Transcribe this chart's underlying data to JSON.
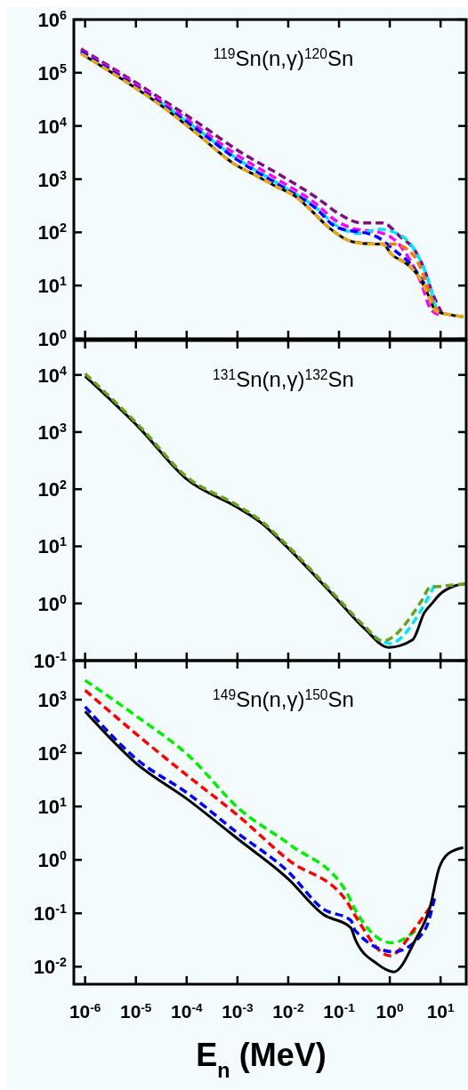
{
  "chart_data": [
    {
      "type": "line",
      "title": "$^{119}$Sn(n,γ)$^{120}$Sn",
      "log": "xy",
      "grid": false,
      "tick_labels": "y",
      "xlim": [
        6e-07,
        32
      ],
      "xticks": [
        {
          "value": 1e-06,
          "label": null
        },
        {
          "value": 1e-05,
          "label": null
        },
        {
          "value": 0.0001,
          "label": null
        },
        {
          "value": 0.001,
          "label": null
        },
        {
          "value": 0.01,
          "label": null
        },
        {
          "value": 0.1,
          "label": null
        },
        {
          "value": 1,
          "label": null
        },
        {
          "value": 10,
          "label": null
        }
      ],
      "ylim": [
        1,
        1000000
      ],
      "yticks": [
        {
          "value": 1,
          "label": "10$^{0}$"
        },
        {
          "value": 10,
          "label": "10$^{1}$"
        },
        {
          "value": 100,
          "label": "10$^{2}$"
        },
        {
          "value": 1000,
          "label": "10$^{3}$"
        },
        {
          "value": 10000,
          "label": "10$^{4}$"
        },
        {
          "value": 100000,
          "label": "10$^{5}$"
        },
        {
          "value": 1000000,
          "label": "10$^{6}$"
        }
      ],
      "series": [
        {
          "color": "#7f0f7f",
          "line_style": "dashed",
          "x": [
            8.3e-07,
            5.5e-06,
            3.2e-05,
            0.00019,
            0.0011,
            0.0069,
            0.04,
            0.095,
            0.28,
            0.72,
            1.6,
            3.2,
            4.8,
            6.6,
            10.7
          ],
          "values": [
            280000,
            93000,
            32000,
            10500,
            3300,
            1200,
            420,
            230,
            150,
            150,
            83,
            44,
            20,
            8.1,
            3.0
          ]
        },
        {
          "color": "#ff00ff",
          "line_style": "dashed",
          "x": [
            8.3e-07,
            3e-05,
            0.00018,
            0.001,
            0.006,
            0.037,
            0.083,
            0.21,
            0.63,
            1.4,
            2.5,
            4.2,
            6.2,
            9.1
          ],
          "values": [
            260000,
            30000,
            9000,
            2800,
            1000,
            330,
            170,
            115,
            100,
            65,
            30,
            10.7,
            3.8,
            2.8
          ]
        },
        {
          "color": "#00e5ff",
          "line_style": "dashed",
          "x": [
            3e-05,
            0.00018,
            0.001,
            0.006,
            0.037,
            0.083,
            0.26,
            0.59,
            1.4,
            3.2,
            5.5,
            8.1
          ],
          "values": [
            28000,
            8100,
            2400,
            850,
            280,
            140,
            95,
            115,
            95,
            44,
            14,
            3.8
          ]
        },
        {
          "color": "#0000ff",
          "line_style": "dashed",
          "x": [
            8.3e-07,
            3e-05,
            0.00018,
            0.001,
            0.006,
            0.037,
            0.083,
            0.55,
            1.2,
            2.8,
            4.8
          ],
          "values": [
            250000,
            27000,
            7900,
            2300,
            820,
            270,
            130,
            83,
            47,
            23,
            10.7
          ]
        },
        {
          "color": "#f07a10",
          "line_style": "dashed",
          "x": [
            0.19,
            0.72,
            1.2,
            2.8,
            4.8,
            6.2,
            9.1
          ],
          "values": [
            66,
            60,
            60,
            39,
            14,
            6.5,
            3.0
          ]
        },
        {
          "color": "#000000",
          "line_style": "solid",
          "x": [
            8.3e-07,
            5.1e-06,
            3e-05,
            0.00017,
            0.00085,
            0.0022,
            0.0056,
            0.014,
            0.032,
            0.065,
            0.19,
            0.52,
            0.72,
            1.1,
            2.1,
            3.6,
            5.5,
            8.1,
            16,
            28
          ],
          "values": [
            230000,
            78000,
            25000,
            6800,
            1950,
            1200,
            740,
            470,
            230,
            120,
            66,
            60,
            60,
            38,
            26,
            15.5,
            7.2,
            3.3,
            2.8,
            2.6
          ]
        },
        {
          "color": "#e6a817",
          "line_style": "dashed",
          "x": [
            8.3e-07,
            5.1e-06,
            3e-05,
            0.00017,
            0.00085,
            0.0022,
            0.0056,
            0.014,
            0.032,
            0.065,
            0.19,
            0.52,
            0.72,
            1.1,
            2.1,
            3.6,
            5.5,
            8.1,
            16,
            28
          ],
          "values": [
            230000,
            78000,
            25000,
            6800,
            1950,
            1200,
            740,
            470,
            230,
            120,
            66,
            60,
            60,
            38,
            26,
            15.5,
            7.2,
            3.3,
            2.8,
            2.6
          ]
        }
      ]
    },
    {
      "type": "line",
      "title": "$^{131}$Sn(n,γ)$^{132}$Sn",
      "log": "xy",
      "grid": false,
      "tick_labels": "y",
      "xlim": [
        6e-07,
        32
      ],
      "xticks": [
        {
          "value": 1e-06,
          "label": null
        },
        {
          "value": 1e-05,
          "label": null
        },
        {
          "value": 0.0001,
          "label": null
        },
        {
          "value": 0.001,
          "label": null
        },
        {
          "value": 0.01,
          "label": null
        },
        {
          "value": 0.1,
          "label": null
        },
        {
          "value": 1,
          "label": null
        },
        {
          "value": 10,
          "label": null
        }
      ],
      "ylim": [
        0.1,
        40000
      ],
      "yticks": [
        {
          "value": 0.1,
          "label": "10$^{-1}$"
        },
        {
          "value": 1,
          "label": "10$^{0}$"
        },
        {
          "value": 10,
          "label": "10$^{1}$"
        },
        {
          "value": 100,
          "label": "10$^{2}$"
        },
        {
          "value": 1000,
          "label": "10$^{3}$"
        },
        {
          "value": 10000,
          "label": "10$^{4}$"
        }
      ],
      "series": [
        {
          "color": "#00e5ff",
          "line_style": "dashed",
          "x": [
            0.32,
            1.0,
            4.2,
            7.6
          ],
          "values": [
            0.38,
            0.2,
            0.78,
            2.1
          ]
        },
        {
          "color": "#000000",
          "line_style": "solid",
          "x": [
            1e-06,
            1.15e-05,
            0.0001,
            0.001,
            0.0029,
            0.0085,
            0.083,
            0.32,
            0.95,
            2.8,
            4.8,
            7.1,
            9.3,
            18,
            31
          ],
          "values": [
            9500,
            1200,
            150,
            48,
            26,
            10.7,
            1.3,
            0.36,
            0.17,
            0.23,
            0.69,
            1.05,
            1.4,
            2.0,
            2.2
          ]
        },
        {
          "color": "#6aa121",
          "line_style": "dashed",
          "x": [
            1e-06,
            1.15e-05,
            0.0001,
            0.001,
            0.0029,
            0.0085,
            0.083,
            0.32,
            0.72,
            4.2,
            6.2,
            10,
            31
          ],
          "values": [
            10500,
            1300,
            165,
            52,
            28,
            11.5,
            1.4,
            0.4,
            0.22,
            1.1,
            1.9,
            2.0,
            2.2
          ]
        }
      ]
    },
    {
      "type": "line",
      "title": "$^{149}$Sn(n,γ)$^{150}$Sn",
      "log": "xy",
      "grid": false,
      "xlabel": "E$_{n}$ (MeV)",
      "xlim": [
        6e-07,
        32
      ],
      "xticks": [
        {
          "value": 1e-06,
          "label": "10$^{-6}$"
        },
        {
          "value": 1e-05,
          "label": "10$^{-5}$"
        },
        {
          "value": 0.0001,
          "label": "10$^{-4}$"
        },
        {
          "value": 0.001,
          "label": "10$^{-3}$"
        },
        {
          "value": 0.01,
          "label": "10$^{-2}$"
        },
        {
          "value": 0.1,
          "label": "10$^{-1}$"
        },
        {
          "value": 1,
          "label": "10$^{0}$"
        },
        {
          "value": 10,
          "label": "10$^{1}$"
        }
      ],
      "ylim": [
        0.0047,
        5400
      ],
      "yticks": [
        {
          "value": 0.01,
          "label": "10$^{-2}$"
        },
        {
          "value": 0.1,
          "label": "10$^{-1}$"
        },
        {
          "value": 1,
          "label": "10$^{0}$"
        },
        {
          "value": 10,
          "label": "10$^{1}$"
        },
        {
          "value": 100,
          "label": "10$^{2}$"
        },
        {
          "value": 1000,
          "label": "10$^{3}$"
        }
      ],
      "series": [
        {
          "color": "#00ee00",
          "line_style": "dashed",
          "x": [
            1e-06,
            1e-05,
            0.00011,
            0.0011,
            0.011,
            0.14,
            0.21,
            1.1,
            3.2
          ],
          "values": [
            2300,
            500,
            89,
            8.9,
            1.9,
            0.25,
            0.115,
            0.028,
            0.047
          ]
        },
        {
          "color": "#ff0000",
          "line_style": "dashed",
          "x": [
            1e-06,
            1e-05,
            0.00011,
            0.001,
            0.01,
            0.14,
            0.21,
            1.0,
            3.2,
            6.2
          ],
          "values": [
            1500,
            230,
            36,
            6.9,
            1.0,
            0.17,
            0.089,
            0.016,
            0.054,
            0.13
          ]
        },
        {
          "color": "#0000ff",
          "line_style": "dashed",
          "x": [
            1e-06,
            1e-05,
            0.00011,
            0.001,
            0.01,
            0.049,
            0.17,
            0.21,
            1.2,
            4.8,
            7.6
          ],
          "values": [
            740,
            79,
            17,
            3.2,
            0.6,
            0.12,
            0.074,
            0.047,
            0.019,
            0.047,
            0.19
          ]
        },
        {
          "color": "#000000",
          "line_style": "solid",
          "x": [
            1e-06,
            1e-05,
            0.0001,
            0.001,
            0.01,
            0.049,
            0.17,
            0.21,
            0.55,
            1.2,
            3.2,
            6.2,
            9.3,
            14,
            28
          ],
          "values": [
            600,
            65,
            14,
            2.5,
            0.44,
            0.095,
            0.054,
            0.032,
            0.0115,
            0.008,
            0.032,
            0.13,
            0.69,
            1.3,
            1.7
          ]
        }
      ]
    }
  ]
}
